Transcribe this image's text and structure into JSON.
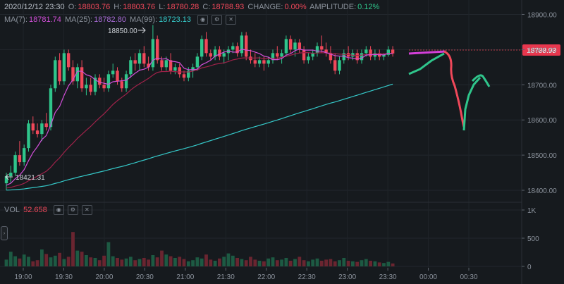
{
  "header": {
    "datetime": "2020/12/12 23:30",
    "open_label": "O:",
    "open": "18803.76",
    "high_label": "H:",
    "high": "18803.76",
    "low_label": "L:",
    "low": "18780.28",
    "close_label": "C:",
    "close": "18788.93",
    "change_label": "CHANGE:",
    "change": "0.00%",
    "amplitude_label": "AMPLITUDE:",
    "amplitude": "0.12%"
  },
  "ma": {
    "ma7_label": "MA(7):",
    "ma7": "18781.74",
    "ma25_label": "MA(25):",
    "ma25": "18782.80",
    "ma99_label": "MA(99):",
    "ma99": "18723.13"
  },
  "vol": {
    "label": "VOL",
    "value": "52.658"
  },
  "annotations": {
    "high_marker": "18850.00",
    "low_marker": "18421.31",
    "last_price": "18788.93"
  },
  "colors": {
    "up": "#2fc58b",
    "down": "#f0485a",
    "ma7": "#d24fd9",
    "ma25": "#a0224a",
    "ma99": "#35c9c9",
    "background": "#161a1e"
  },
  "chart_data": {
    "type": "candlestick",
    "price_axis": {
      "ticks": [
        "18900.00",
        "18800.00",
        "18700.00",
        "18600.00",
        "18500.00",
        "18400.00"
      ],
      "range": [
        18380,
        18925
      ]
    },
    "volume_axis": {
      "ticks": [
        "1K",
        "500",
        "0"
      ],
      "range": [
        0,
        1000
      ]
    },
    "time_axis": {
      "ticks": [
        "19:00",
        "19:30",
        "20:00",
        "20:30",
        "21:00",
        "21:30",
        "22:00",
        "22:30",
        "23:00",
        "23:30",
        "00:00",
        "00:30"
      ]
    },
    "candles": [
      [
        18420,
        18450,
        18400,
        18440
      ],
      [
        18440,
        18470,
        18420,
        18450
      ],
      [
        18450,
        18510,
        18440,
        18500
      ],
      [
        18500,
        18540,
        18470,
        18480
      ],
      [
        18480,
        18530,
        18470,
        18520
      ],
      [
        18520,
        18600,
        18510,
        18590
      ],
      [
        18590,
        18610,
        18560,
        18570
      ],
      [
        18570,
        18590,
        18550,
        18560
      ],
      [
        18560,
        18600,
        18540,
        18590
      ],
      [
        18590,
        18620,
        18570,
        18580
      ],
      [
        18580,
        18700,
        18570,
        18690
      ],
      [
        18690,
        18780,
        18680,
        18770
      ],
      [
        18770,
        18790,
        18700,
        18710
      ],
      [
        18710,
        18800,
        18700,
        18790
      ],
      [
        18790,
        18800,
        18740,
        18750
      ],
      [
        18750,
        18770,
        18700,
        18710
      ],
      [
        18710,
        18760,
        18690,
        18750
      ],
      [
        18750,
        18770,
        18680,
        18690
      ],
      [
        18690,
        18720,
        18670,
        18700
      ],
      [
        18700,
        18720,
        18670,
        18680
      ],
      [
        18680,
        18730,
        18670,
        18720
      ],
      [
        18720,
        18730,
        18690,
        18700
      ],
      [
        18700,
        18720,
        18680,
        18690
      ],
      [
        18690,
        18740,
        18680,
        18730
      ],
      [
        18730,
        18760,
        18720,
        18740
      ],
      [
        18740,
        18750,
        18700,
        18710
      ],
      [
        18710,
        18720,
        18680,
        18690
      ],
      [
        18690,
        18740,
        18680,
        18730
      ],
      [
        18730,
        18780,
        18720,
        18770
      ],
      [
        18770,
        18790,
        18740,
        18760
      ],
      [
        18760,
        18800,
        18740,
        18790
      ],
      [
        18790,
        18810,
        18750,
        18760
      ],
      [
        18760,
        18780,
        18740,
        18750
      ],
      [
        18750,
        18870,
        18740,
        18830
      ],
      [
        18830,
        18840,
        18760,
        18770
      ],
      [
        18770,
        18780,
        18740,
        18750
      ],
      [
        18750,
        18780,
        18740,
        18770
      ],
      [
        18770,
        18790,
        18730,
        18740
      ],
      [
        18740,
        18760,
        18730,
        18750
      ],
      [
        18750,
        18760,
        18720,
        18730
      ],
      [
        18730,
        18740,
        18710,
        18720
      ],
      [
        18720,
        18750,
        18710,
        18740
      ],
      [
        18740,
        18760,
        18720,
        18750
      ],
      [
        18750,
        18790,
        18740,
        18780
      ],
      [
        18780,
        18840,
        18770,
        18830
      ],
      [
        18830,
        18850,
        18780,
        18790
      ],
      [
        18790,
        18800,
        18770,
        18780
      ],
      [
        18780,
        18810,
        18770,
        18800
      ],
      [
        18800,
        18810,
        18770,
        18780
      ],
      [
        18780,
        18800,
        18760,
        18790
      ],
      [
        18790,
        18810,
        18770,
        18800
      ],
      [
        18800,
        18820,
        18790,
        18810
      ],
      [
        18810,
        18820,
        18780,
        18790
      ],
      [
        18790,
        18850,
        18780,
        18840
      ],
      [
        18840,
        18850,
        18770,
        18780
      ],
      [
        18780,
        18800,
        18760,
        18770
      ],
      [
        18770,
        18790,
        18750,
        18760
      ],
      [
        18760,
        18780,
        18750,
        18770
      ],
      [
        18770,
        18780,
        18740,
        18760
      ],
      [
        18760,
        18780,
        18750,
        18770
      ],
      [
        18770,
        18800,
        18760,
        18790
      ],
      [
        18790,
        18810,
        18770,
        18780
      ],
      [
        18780,
        18800,
        18760,
        18790
      ],
      [
        18790,
        18840,
        18780,
        18830
      ],
      [
        18830,
        18840,
        18790,
        18800
      ],
      [
        18800,
        18830,
        18780,
        18820
      ],
      [
        18820,
        18830,
        18790,
        18800
      ],
      [
        18800,
        18810,
        18760,
        18770
      ],
      [
        18770,
        18790,
        18760,
        18780
      ],
      [
        18780,
        18800,
        18770,
        18790
      ],
      [
        18790,
        18820,
        18780,
        18810
      ],
      [
        18810,
        18840,
        18790,
        18800
      ],
      [
        18800,
        18820,
        18780,
        18790
      ],
      [
        18790,
        18810,
        18760,
        18770
      ],
      [
        18770,
        18790,
        18730,
        18740
      ],
      [
        18740,
        18780,
        18730,
        18770
      ],
      [
        18770,
        18800,
        18760,
        18790
      ],
      [
        18790,
        18810,
        18770,
        18780
      ],
      [
        18780,
        18800,
        18770,
        18790
      ],
      [
        18790,
        18800,
        18760,
        18770
      ],
      [
        18770,
        18800,
        18760,
        18790
      ],
      [
        18790,
        18810,
        18780,
        18800
      ],
      [
        18800,
        18810,
        18770,
        18780
      ],
      [
        18780,
        18800,
        18770,
        18790
      ],
      [
        18790,
        18800,
        18770,
        18780
      ],
      [
        18780,
        18790,
        18770,
        18785
      ],
      [
        18785,
        18810,
        18780,
        18800
      ],
      [
        18800,
        18810,
        18780,
        18789
      ]
    ],
    "volumes": [
      120,
      260,
      180,
      140,
      210,
      170,
      90,
      110,
      300,
      220,
      160,
      190,
      240,
      130,
      170,
      610,
      280,
      260,
      200,
      160,
      150,
      110,
      190,
      430,
      180,
      150,
      120,
      140,
      170,
      110,
      130,
      150,
      120,
      200,
      160,
      280,
      210,
      180,
      150,
      170,
      130,
      90,
      110,
      160,
      140,
      210,
      120,
      100,
      140,
      170,
      230,
      190,
      150,
      130,
      110,
      170,
      120,
      100,
      90,
      140,
      160,
      110,
      120,
      150,
      100,
      130,
      170,
      110,
      90,
      120,
      140,
      100,
      120,
      130,
      90,
      110,
      150,
      100,
      90,
      80,
      110,
      130,
      100,
      90,
      70,
      60,
      80,
      52
    ]
  }
}
